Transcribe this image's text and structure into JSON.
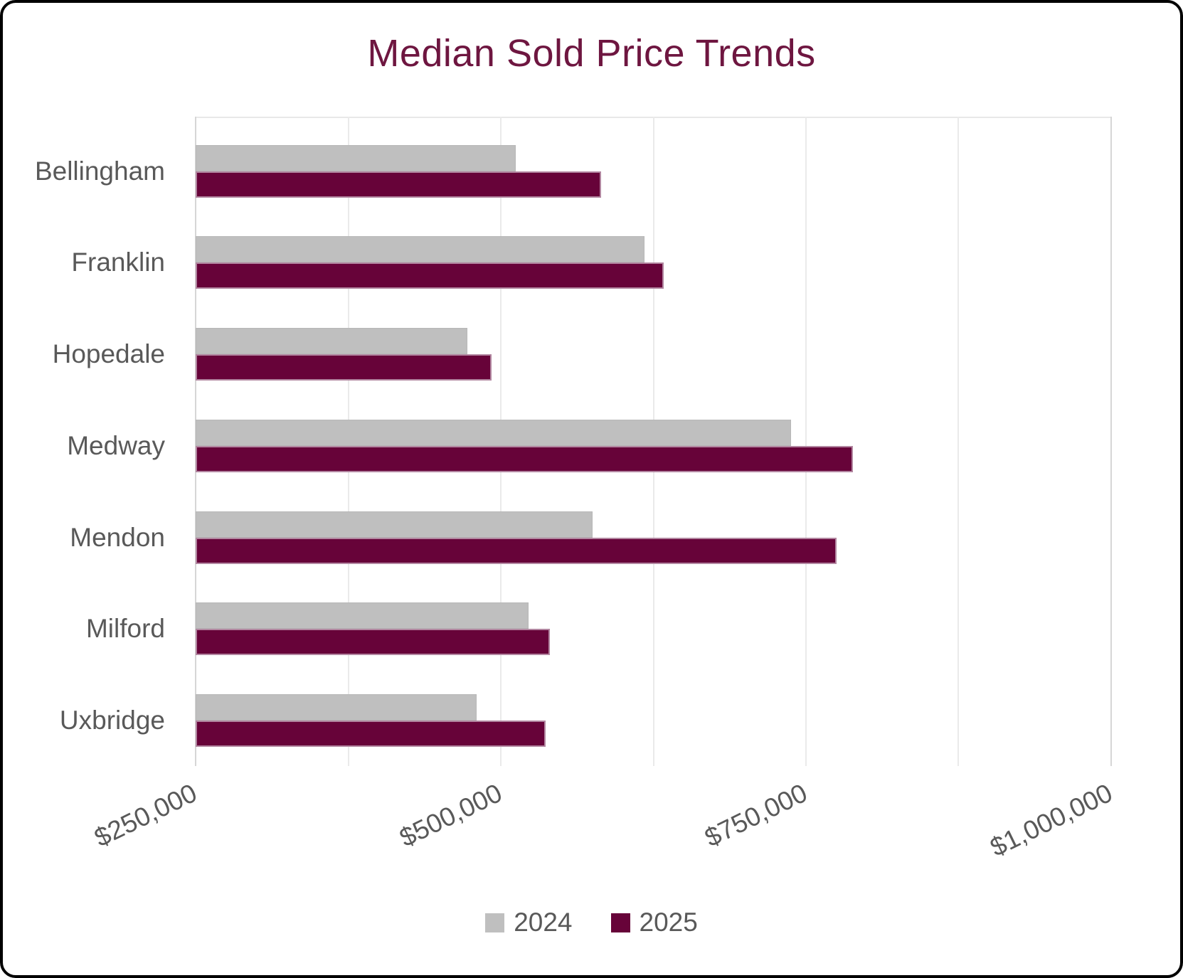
{
  "chart_data": {
    "type": "bar",
    "orientation": "horizontal",
    "title": "Median Sold Price Trends",
    "categories": [
      "Bellingham",
      "Franklin",
      "Hopedale",
      "Medway",
      "Mendon",
      "Milford",
      "Uxbridge"
    ],
    "series": [
      {
        "name": "2024",
        "color": "#bfbfbf",
        "values": [
          512500,
          618000,
          472500,
          738000,
          575000,
          522500,
          480000
        ]
      },
      {
        "name": "2025",
        "color": "#670339",
        "values": [
          582000,
          633500,
          492500,
          788500,
          775000,
          540000,
          536500
        ]
      }
    ],
    "xlim": [
      250000,
      1000000
    ],
    "x_ticks": [
      250000,
      500000,
      750000,
      1000000
    ],
    "x_tick_labels": [
      "$250,000",
      "$500,000",
      "$750,000",
      "$1,000,000"
    ],
    "grid": "vertical minor gridlines every 125000",
    "legend_position": "bottom",
    "colors": {
      "title": "#6e1640",
      "axis_text": "#595959",
      "gridline": "#e8e8e8"
    }
  }
}
